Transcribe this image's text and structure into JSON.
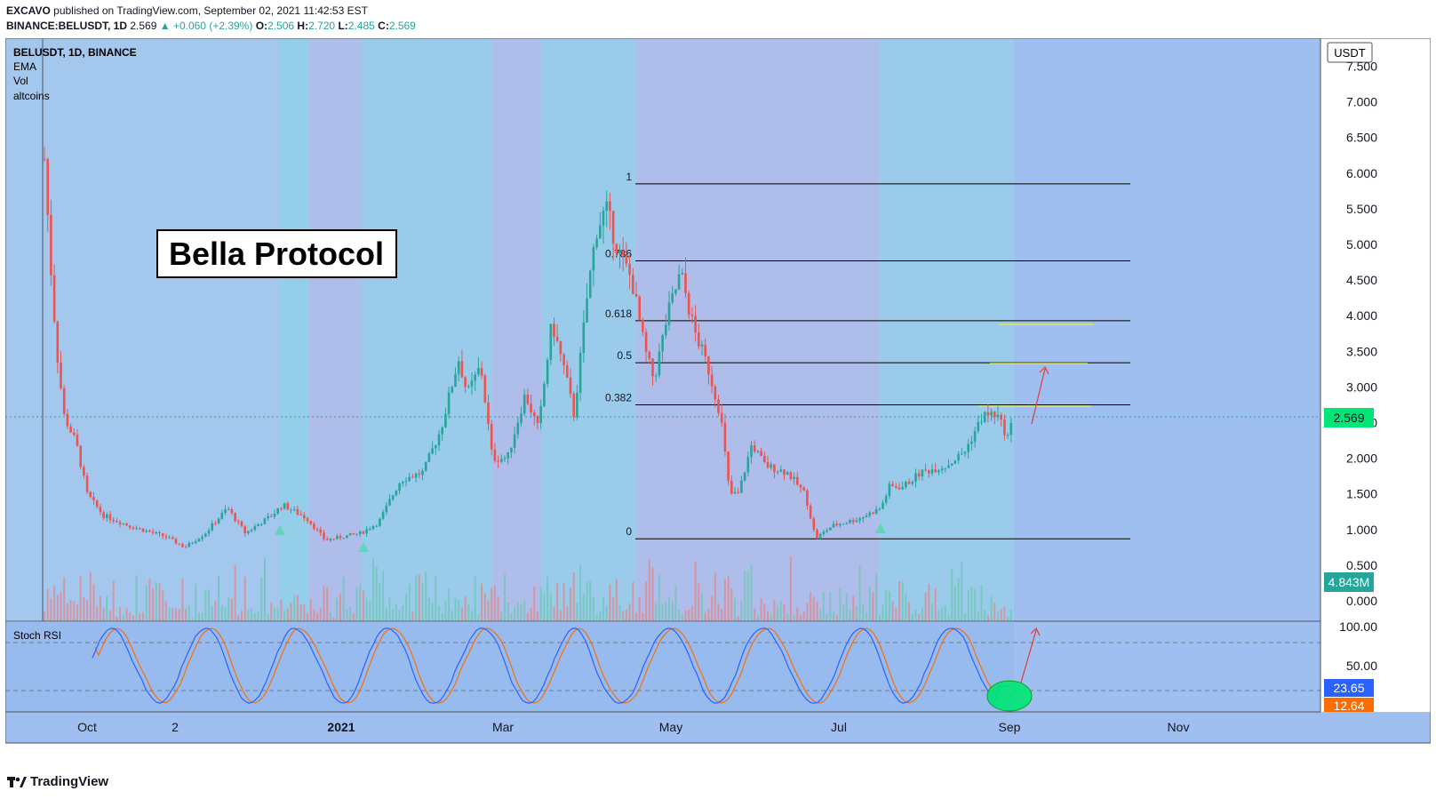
{
  "header": {
    "author": "EXCAVO",
    "published": "published on TradingView.com, September 02, 2021 11:42:53 EST",
    "symbol": "BINANCE:BELUSDT, 1D",
    "last": "2.569",
    "change": "▲ +0.060 (+2.39%)",
    "o_label": "O:",
    "o": "2.506",
    "h_label": "H:",
    "h": "2.720",
    "l_label": "L:",
    "l": "2.485",
    "c_label": "C:",
    "c": "2.569"
  },
  "legend": {
    "title": "BELUSDT, 1D, BINANCE",
    "items": [
      "EMA",
      "Vol",
      "altcoins"
    ]
  },
  "annotation": {
    "title": "Bella Protocol"
  },
  "price_axis": {
    "currency": "USDT",
    "ticks": [
      "7.500",
      "7.000",
      "6.500",
      "6.000",
      "5.500",
      "5.000",
      "4.500",
      "4.000",
      "3.500",
      "3.000",
      "2.500",
      "2.000",
      "1.500",
      "1.000",
      "0.500",
      "0.000"
    ],
    "last_price_label": "2.569",
    "volume_label": "4.843M"
  },
  "rsi": {
    "title": "Stoch RSI",
    "ticks": [
      "100.00",
      "50.00"
    ],
    "k_label": "23.65",
    "d_label": "12.64"
  },
  "time_axis": {
    "ticks": [
      "Oct",
      "2",
      "2021",
      "Mar",
      "May",
      "Jul",
      "Sep",
      "Nov"
    ]
  },
  "fib_labels": [
    "1",
    "0.786",
    "0.618",
    "0.5",
    "0.382",
    "0"
  ],
  "footer": {
    "brand": "TradingView"
  },
  "colors": {
    "bg": "#9ebff0",
    "up": "#26a69a",
    "down": "#ef5350",
    "accent_green": "#00e676",
    "rsi_k": "#2962ff",
    "rsi_d": "#ff6d00"
  },
  "chart_data": {
    "type": "candlestick",
    "symbol": "BELUSDT",
    "interval": "1D",
    "exchange": "BINANCE",
    "ylim": [
      0,
      7.6
    ],
    "key_prices": {
      "listing_high": 6.2,
      "feb_peak": 3.7,
      "apr_ath": 5.85,
      "may_high": 4.7,
      "jun_low": 0.87,
      "last": 2.569
    },
    "fibonacci": [
      {
        "level": "1",
        "price": 5.85
      },
      {
        "level": "0.786",
        "price": 4.77
      },
      {
        "level": "0.618",
        "price": 3.93
      },
      {
        "level": "0.5",
        "price": 3.34
      },
      {
        "level": "0.382",
        "price": 2.75
      },
      {
        "level": "0",
        "price": 0.87
      }
    ],
    "targets": [
      3.9,
      3.33
    ],
    "rsi_range": [
      0,
      100
    ],
    "rsi_last": {
      "k": 23.65,
      "d": 12.64
    }
  }
}
